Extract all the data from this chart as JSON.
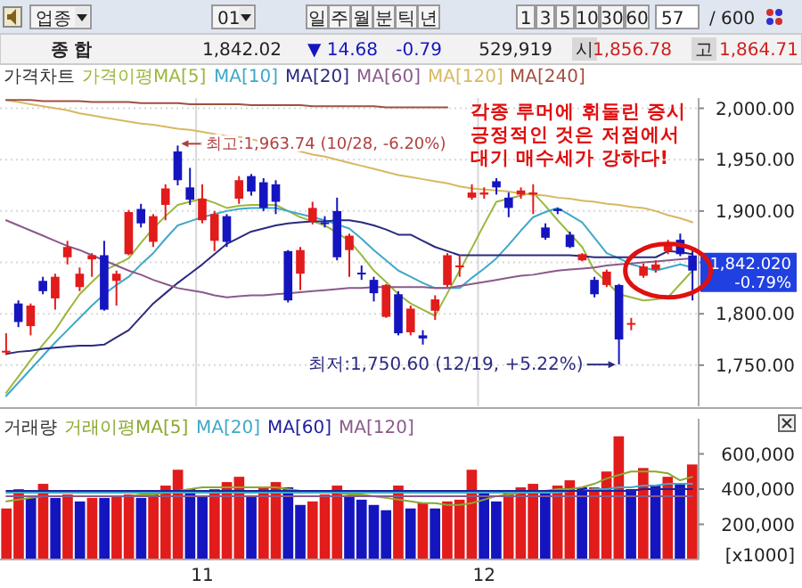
{
  "chart_data": [
    {
      "type": "other",
      "annotations": [
        "업종",
        "01",
        "일",
        "주",
        "월",
        "분",
        "틱",
        "년",
        "1",
        "3",
        "5",
        "10",
        "30",
        "60",
        "57",
        "/ 600"
      ]
    },
    {
      "type": "other",
      "annotations": [
        "종    합",
        "1,842.02",
        "▼ 14.68",
        "-0.79",
        "529,919",
        "시",
        "1,856.78",
        "고",
        "1,864.71"
      ]
    },
    {
      "type": "candlestick",
      "title": "가격차트",
      "legend_title": "가격이평",
      "tick_labels": "y",
      "grid": true,
      "legend": "top left",
      "categories": [
        null,
        null,
        null,
        null,
        null,
        null,
        null,
        null,
        null,
        null,
        null,
        null,
        null,
        null,
        null,
        null,
        "11",
        null,
        null,
        null,
        null,
        null,
        null,
        null,
        null,
        null,
        null,
        null,
        null,
        null,
        null,
        null,
        null,
        null,
        null,
        null,
        null,
        null,
        null,
        "12",
        null,
        null,
        null,
        null,
        null,
        null,
        null,
        null,
        null,
        null,
        null,
        null,
        null,
        null,
        null,
        null,
        null
      ],
      "ylim": [
        1710,
        2010
      ],
      "yticks": [
        {
          "value": 1750,
          "label": "1,750.00"
        },
        {
          "value": 1800,
          "label": "1,800.00"
        },
        {
          "value": 1850,
          "label": null
        },
        {
          "value": 1900,
          "label": "1,900.00"
        },
        {
          "value": 1950,
          "label": "1,950.00"
        },
        {
          "value": 2000,
          "label": "2,000.00"
        }
      ],
      "ohlc": [
        [
          1763,
          1781,
          1760,
          1764
        ],
        [
          1810,
          1813,
          1787,
          1792
        ],
        [
          1788,
          1810,
          1779,
          1808
        ],
        [
          1832,
          1836,
          1819,
          1822
        ],
        [
          1815,
          1839,
          1804,
          1836
        ],
        [
          1855,
          1871,
          1848,
          1865
        ],
        [
          1826,
          1845,
          1822,
          1839
        ],
        [
          1853,
          1859,
          1836,
          1857
        ],
        [
          1857,
          1871,
          1803,
          1804
        ],
        [
          1832,
          1842,
          1808,
          1839
        ],
        [
          1858,
          1901,
          1857,
          1899
        ],
        [
          1902,
          1907,
          1884,
          1888
        ],
        [
          1870,
          1897,
          1865,
          1895
        ],
        [
          1906,
          1926,
          1891,
          1922
        ],
        [
          1958,
          1963.74,
          1925,
          1930
        ],
        [
          1923,
          1942,
          1906,
          1911
        ],
        [
          1891,
          1926,
          1888,
          1912
        ],
        [
          1871,
          1900,
          1861,
          1897
        ],
        [
          1895,
          1897,
          1865,
          1870
        ],
        [
          1912,
          1934,
          1907,
          1930
        ],
        [
          1934,
          1936,
          1915,
          1919
        ],
        [
          1928,
          1932,
          1900,
          1903
        ],
        [
          1926,
          1930,
          1897,
          1909
        ],
        [
          1861,
          1862,
          1811,
          1813
        ],
        [
          1839,
          1865,
          1823,
          1862
        ],
        [
          1890,
          1909,
          1887,
          1903
        ],
        [
          1889,
          1895,
          1884,
          1888
        ],
        [
          1900,
          1913,
          1852,
          1855
        ],
        [
          1862,
          1878,
          1836,
          1876
        ],
        [
          1840,
          1847,
          1833,
          1839
        ],
        [
          1833,
          1836,
          1812,
          1820
        ],
        [
          1797,
          1829,
          1796,
          1828
        ],
        [
          1819,
          1822,
          1779,
          1781
        ],
        [
          1782,
          1808,
          1779,
          1805
        ],
        [
          1779,
          1784,
          1770,
          1776
        ],
        [
          1803,
          1818,
          1794,
          1814
        ],
        [
          1828,
          1859,
          1826,
          1857
        ],
        [
          1846,
          1857,
          1836,
          1847
        ],
        [
          1913,
          1926,
          1911,
          1918
        ],
        [
          1916,
          1923,
          1912,
          1918
        ],
        [
          1929,
          1932,
          1916,
          1923
        ],
        [
          1913,
          1918,
          1894,
          1903
        ],
        [
          1916,
          1923,
          1912,
          1920
        ],
        [
          1916,
          1926,
          1897,
          1918
        ],
        [
          1884,
          1888,
          1872,
          1874
        ],
        [
          1902,
          1903,
          1897,
          1900
        ],
        [
          1877,
          1880,
          1864,
          1865
        ],
        [
          1852,
          1859,
          1851,
          1858
        ],
        [
          1833,
          1836,
          1816,
          1819
        ],
        [
          1828,
          1843,
          1826,
          1841
        ],
        [
          1828,
          1829,
          1750.6,
          1775
        ],
        [
          1790,
          1796,
          1784,
          1791
        ],
        [
          1837,
          1849,
          1835,
          1846
        ],
        [
          1843,
          1852,
          1840,
          1848
        ],
        [
          1861,
          1872,
          1858,
          1869
        ],
        [
          1872,
          1878,
          1856,
          1858
        ],
        [
          1856.78,
          1864.71,
          1813,
          1842.02
        ]
      ],
      "colors": [
        "#e21b1b",
        "#1515c0",
        "#e21b1b",
        "#1515c0",
        "#e21b1b",
        "#e21b1b",
        "#e21b1b",
        "#e21b1b",
        "#1515c0",
        "#e21b1b",
        "#e21b1b",
        "#1515c0",
        "#e21b1b",
        "#e21b1b",
        "#1515c0",
        "#1515c0",
        "#e21b1b",
        "#e21b1b",
        "#1515c0",
        "#e21b1b",
        "#1515c0",
        "#1515c0",
        "#1515c0",
        "#1515c0",
        "#e21b1b",
        "#e21b1b",
        "#1515c0",
        "#1515c0",
        "#e21b1b",
        "#1515c0",
        "#1515c0",
        "#e21b1b",
        "#1515c0",
        "#e21b1b",
        "#1515c0",
        "#e21b1b",
        "#e21b1b",
        "#e21b1b",
        "#e21b1b",
        "#e21b1b",
        "#1515c0",
        "#1515c0",
        "#e21b1b",
        "#e21b1b",
        "#1515c0",
        "#1515c0",
        "#1515c0",
        "#e21b1b",
        "#1515c0",
        "#e21b1b",
        "#1515c0",
        "#e21b1b",
        "#e21b1b",
        "#e21b1b",
        "#e21b1b",
        "#1515c0",
        "#1515c0"
      ],
      "series": [
        {
          "type": "line",
          "name": "MA[5]",
          "color": "#9ab83c",
          "values": [
            1723,
            1739,
            1755,
            1770,
            1784,
            1802,
            1819,
            1831,
            1842,
            1848,
            1854,
            1869,
            1883,
            1895,
            1906,
            1909,
            1912,
            1908,
            1903,
            1905,
            1906,
            1906,
            1906,
            1900,
            1894,
            1890,
            1886,
            1879,
            1871,
            1857,
            1842,
            1831,
            1819,
            1810,
            1804,
            1798,
            1820,
            1842,
            1864,
            1887,
            1909,
            1912,
            1915,
            1918,
            1905,
            1891,
            1878,
            1865,
            1842,
            1831,
            1819,
            1816,
            1813,
            1814,
            1816,
            1829,
            1842
          ]
        },
        {
          "type": "line",
          "name": "MA[10]",
          "color": "#3fa8c8",
          "values": [
            1720,
            1733,
            1746,
            1759,
            1772,
            1784,
            1796,
            1808,
            1819,
            1828,
            1836,
            1848,
            1859,
            1873,
            1886,
            1890,
            1894,
            1897,
            1900,
            1902,
            1903,
            1903,
            1903,
            1900,
            1897,
            1894,
            1891,
            1887,
            1883,
            1873,
            1862,
            1852,
            1842,
            1836,
            1830,
            1825,
            1825,
            1825,
            1835,
            1844,
            1854,
            1867,
            1881,
            1894,
            1899,
            1903,
            1896,
            1889,
            1874,
            1859,
            1854,
            1848,
            1845,
            1842,
            1845,
            1848,
            1845
          ]
        },
        {
          "type": "line",
          "name": "MA[20]",
          "color": "#2a2a80",
          "values": [
            1761,
            1763,
            1764,
            1766,
            1767,
            1768,
            1769,
            1769,
            1770,
            1777,
            1784,
            1797,
            1810,
            1820,
            1830,
            1839,
            1848,
            1858,
            1868,
            1874,
            1880,
            1883,
            1886,
            1888,
            1889,
            1890,
            1890,
            1891,
            1891,
            1889,
            1886,
            1882,
            1877,
            1877,
            1871,
            1865,
            1861,
            1857,
            1857,
            1857,
            1857,
            1857,
            1857,
            1857,
            1857,
            1857,
            1857,
            1856,
            1855,
            1855,
            1855,
            1855,
            1855,
            1855,
            1861,
            1860,
            1858
          ]
        },
        {
          "type": "line",
          "name": "MA[60]",
          "color": "#8a5a8a",
          "values": [
            1891,
            1886,
            1881,
            1876,
            1871,
            1866,
            1862,
            1857,
            1852,
            1847,
            1842,
            1838,
            1833,
            1829,
            1825,
            1823,
            1821,
            1818,
            1816,
            1817,
            1818,
            1818,
            1819,
            1820,
            1821,
            1822,
            1823,
            1824,
            1825,
            1825,
            1826,
            1826,
            1826,
            1826,
            1826,
            1825,
            1825,
            1827,
            1829,
            1831,
            1833,
            1835,
            1837,
            1838,
            1840,
            1842,
            1843,
            1844,
            1845,
            1847,
            1848,
            1849,
            1850,
            1851,
            1852,
            1853,
            1854
          ]
        },
        {
          "type": "line",
          "name": "MA[120]",
          "color": "#d8b860",
          "values": [
            2008,
            2006,
            2004,
            2002,
            2000,
            1998,
            1995,
            1993,
            1991,
            1989,
            1987,
            1985,
            1984,
            1982,
            1980,
            1979,
            1977,
            1975,
            1973,
            1972,
            1970,
            1967,
            1964,
            1961,
            1958,
            1955,
            1953,
            1950,
            1947,
            1944,
            1941,
            1938,
            1935,
            1933,
            1931,
            1929,
            1927,
            1924,
            1922,
            1921,
            1920,
            1919,
            1917,
            1916,
            1915,
            1913,
            1912,
            1910,
            1909,
            1907,
            1906,
            1904,
            1903,
            1900,
            1896,
            1893,
            1889
          ]
        },
        {
          "type": "line",
          "name": "MA[240]",
          "color": "#a05040",
          "values": [
            2008,
            2008,
            2008,
            2007,
            2007,
            2007,
            2007,
            2006,
            2006,
            2006,
            2006,
            2005,
            2005,
            2005,
            2005,
            2004,
            2004,
            2004,
            2004,
            2004,
            2003,
            2003,
            2003,
            2003,
            2003,
            2002,
            2002,
            2002,
            2002,
            2002,
            2002,
            2001,
            2001,
            2001,
            2001,
            2001,
            2001,
            null,
            null,
            null,
            null,
            null,
            null,
            null,
            null,
            null,
            null,
            null,
            null,
            null,
            null,
            null,
            null,
            null,
            null,
            null,
            null
          ]
        }
      ],
      "annotations": [
        "최고:1,963.74 (10/28, -6.20%)",
        "최저:1,750.60 (12/19, +5.22%)",
        "각종 루머에 휘둘린 증시\n긍정적인 것은 저점에서\n대기 매수세가 강하다!",
        "1,842.020",
        "-0.79%"
      ]
    },
    {
      "type": "bar",
      "title": "거래량",
      "legend_title": "거래이평",
      "ylabel": "[x1000]",
      "grid": false,
      "legend": "top left",
      "categories": [
        null,
        null,
        null,
        null,
        null,
        null,
        null,
        null,
        null,
        null,
        null,
        null,
        null,
        null,
        null,
        null,
        "11",
        null,
        null,
        null,
        null,
        null,
        null,
        null,
        null,
        null,
        null,
        null,
        null,
        null,
        null,
        null,
        null,
        null,
        null,
        null,
        null,
        null,
        null,
        "12",
        null,
        null,
        null,
        null,
        null,
        null,
        null,
        null,
        null,
        null,
        null,
        null,
        null,
        null,
        null,
        null,
        null
      ],
      "ylim": [
        0,
        800000
      ],
      "yticks": [
        {
          "value": 200000,
          "label": "200,000"
        },
        {
          "value": 400000,
          "label": "400,000"
        },
        {
          "value": 600000,
          "label": "600,000"
        }
      ],
      "series": [
        {
          "type": "bar",
          "values": [
            290000,
            400000,
            350000,
            430000,
            350000,
            370000,
            330000,
            350000,
            350000,
            360000,
            370000,
            350000,
            380000,
            420000,
            510000,
            400000,
            360000,
            400000,
            440000,
            470000,
            360000,
            410000,
            440000,
            410000,
            310000,
            330000,
            370000,
            420000,
            360000,
            340000,
            310000,
            280000,
            420000,
            290000,
            320000,
            290000,
            330000,
            340000,
            510000,
            390000,
            330000,
            380000,
            410000,
            430000,
            380000,
            420000,
            450000,
            410000,
            410000,
            500000,
            700000,
            400000,
            520000,
            420000,
            470000,
            430000,
            540000
          ],
          "colors": [
            "#e21b1b",
            "#e21b1b",
            "#1515c0",
            "#e21b1b",
            "#1515c0",
            "#e21b1b",
            "#1515c0",
            "#e21b1b",
            "#1515c0",
            "#e21b1b",
            "#e21b1b",
            "#1515c0",
            "#e21b1b",
            "#e21b1b",
            "#e21b1b",
            "#1515c0",
            "#1515c0",
            "#e21b1b",
            "#e21b1b",
            "#e21b1b",
            "#1515c0",
            "#e21b1b",
            "#e21b1b",
            "#1515c0",
            "#1515c0",
            "#e21b1b",
            "#e21b1b",
            "#e21b1b",
            "#1515c0",
            "#1515c0",
            "#1515c0",
            "#1515c0",
            "#e21b1b",
            "#1515c0",
            "#e21b1b",
            "#1515c0",
            "#e21b1b",
            "#e21b1b",
            "#e21b1b",
            "#1515c0",
            "#1515c0",
            "#e21b1b",
            "#e21b1b",
            "#e21b1b",
            "#1515c0",
            "#e21b1b",
            "#e21b1b",
            "#1515c0",
            "#e21b1b",
            "#e21b1b",
            "#e21b1b",
            "#1515c0",
            "#e21b1b",
            "#1515c0",
            "#e21b1b",
            "#1515c0",
            "#e21b1b"
          ]
        },
        {
          "type": "line",
          "name": "MA[5]",
          "color": "#8aa830",
          "values": [
            330000,
            340000,
            350000,
            360000,
            360000,
            360000,
            360000,
            360000,
            360000,
            360000,
            360000,
            370000,
            370000,
            380000,
            390000,
            400000,
            410000,
            410000,
            410000,
            410000,
            410000,
            410000,
            410000,
            400000,
            390000,
            380000,
            380000,
            380000,
            370000,
            370000,
            360000,
            350000,
            340000,
            330000,
            320000,
            320000,
            310000,
            310000,
            320000,
            340000,
            360000,
            370000,
            380000,
            380000,
            390000,
            400000,
            400000,
            410000,
            430000,
            460000,
            480000,
            500000,
            500000,
            500000,
            490000,
            450000,
            470000
          ]
        },
        {
          "type": "line",
          "name": "MA[20]",
          "color": "#40a8c8",
          "values": [
            380000,
            380000,
            380000,
            380000,
            380000,
            380000,
            380000,
            380000,
            380000,
            380000,
            380000,
            380000,
            380000,
            380000,
            380000,
            380000,
            380000,
            380000,
            380000,
            380000,
            380000,
            380000,
            380000,
            380000,
            380000,
            380000,
            380000,
            380000,
            380000,
            380000,
            380000,
            380000,
            380000,
            380000,
            380000,
            380000,
            380000,
            380000,
            380000,
            380000,
            380000,
            380000,
            380000,
            380000,
            380000,
            380000,
            390000,
            390000,
            400000,
            400000,
            410000,
            410000,
            420000,
            420000,
            430000,
            430000,
            430000
          ]
        },
        {
          "type": "line",
          "name": "MA[60]",
          "color": "#2020a0",
          "values": [
            390000,
            390000,
            390000,
            390000,
            390000,
            390000,
            390000,
            390000,
            390000,
            390000,
            390000,
            390000,
            390000,
            390000,
            390000,
            390000,
            390000,
            390000,
            390000,
            390000,
            390000,
            390000,
            390000,
            390000,
            390000,
            390000,
            390000,
            390000,
            390000,
            390000,
            390000,
            390000,
            390000,
            390000,
            390000,
            390000,
            390000,
            390000,
            390000,
            390000,
            390000,
            390000,
            390000,
            390000,
            390000,
            390000,
            390000,
            390000,
            390000,
            390000,
            390000,
            390000,
            400000,
            400000,
            400000,
            400000,
            400000
          ]
        },
        {
          "type": "line",
          "name": "MA[120]",
          "color": "#8a5a8a",
          "values": [
            360000,
            360000,
            360000,
            360000,
            360000,
            360000,
            360000,
            360000,
            360000,
            360000,
            360000,
            360000,
            360000,
            360000,
            360000,
            360000,
            360000,
            360000,
            360000,
            360000,
            360000,
            360000,
            360000,
            360000,
            360000,
            360000,
            360000,
            360000,
            360000,
            360000,
            360000,
            360000,
            360000,
            360000,
            360000,
            360000,
            360000,
            360000,
            360000,
            360000,
            360000,
            360000,
            360000,
            360000,
            360000,
            360000,
            360000,
            360000,
            360000,
            360000,
            360000,
            360000,
            360000,
            360000,
            360000,
            360000,
            360000
          ]
        }
      ]
    }
  ]
}
